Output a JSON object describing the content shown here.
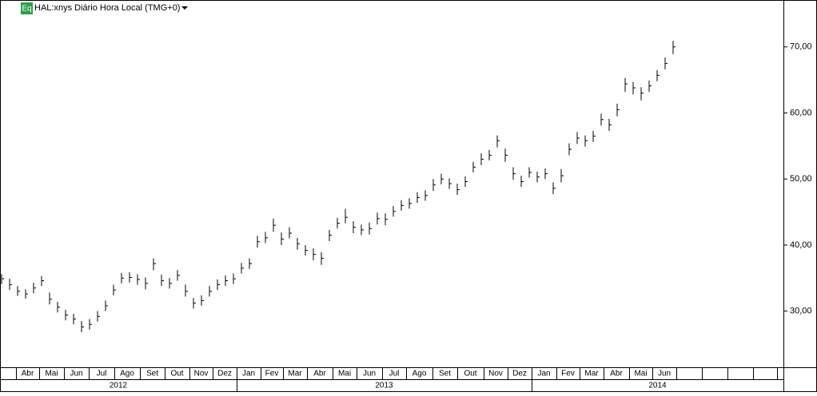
{
  "chart_data": {
    "type": "ohlc",
    "badge": "Eq",
    "title": "HAL:xnys Diário Hora Local (TMG+0)",
    "color": "#000000",
    "ylim": [
      21.5,
      77.1
    ],
    "yticks": [
      {
        "value": 30,
        "label": "30,00"
      },
      {
        "value": 40,
        "label": "40,00"
      },
      {
        "value": 50,
        "label": "50,00"
      },
      {
        "value": 60,
        "label": "60,00"
      },
      {
        "value": 70,
        "label": "70,00"
      }
    ],
    "months": [
      "Abr",
      "Mai",
      "Jun",
      "Jul",
      "Ago",
      "Set",
      "Out",
      "Nov",
      "Dez",
      "Jan",
      "Fev",
      "Mar",
      "Abr",
      "Mai",
      "Jun",
      "Jul",
      "Ago",
      "Set",
      "Out",
      "Nov",
      "Dez",
      "Jan",
      "Fev",
      "Mar",
      "Abr",
      "Mai",
      "Jun"
    ],
    "years": [
      "2012",
      "2013",
      "2014"
    ],
    "series": [
      {
        "name": "high",
        "values": [
          35.6,
          34.9,
          33.8,
          33.3,
          34.3,
          35.3,
          32.8,
          31.4,
          30.2,
          29.6,
          28.5,
          28.8,
          30.0,
          31.6,
          34.0,
          35.8,
          35.9,
          35.6,
          35.1,
          38.0,
          35.5,
          35.0,
          36.2,
          34.0,
          32.0,
          32.4,
          33.8,
          34.8,
          35.4,
          35.7,
          37.3,
          38.0,
          41.4,
          42.0,
          44.0,
          41.9,
          42.7,
          41.1,
          40.0,
          39.5,
          38.9,
          42.3,
          44.1,
          45.5,
          43.6,
          43.1,
          43.4,
          44.9,
          44.8,
          45.9,
          46.8,
          47.1,
          48.0,
          48.3,
          50.0,
          50.8,
          50.1,
          49.3,
          50.4,
          52.6,
          53.9,
          54.4,
          56.6,
          54.6,
          51.8,
          50.5,
          51.8,
          51.1,
          51.6,
          49.5,
          51.5,
          55.4,
          57.1,
          56.6,
          57.3,
          59.9,
          59.1,
          61.4,
          65.3,
          64.7,
          63.9,
          64.9,
          66.5,
          68.4,
          70.9
        ]
      },
      {
        "name": "low",
        "values": [
          34.1,
          33.2,
          32.3,
          31.9,
          32.7,
          33.8,
          31.0,
          29.8,
          28.6,
          28.0,
          26.8,
          27.2,
          28.4,
          30.0,
          32.4,
          34.2,
          34.3,
          34.0,
          33.3,
          36.2,
          33.8,
          33.4,
          34.6,
          32.2,
          30.4,
          30.8,
          32.2,
          33.2,
          33.8,
          34.1,
          35.7,
          36.4,
          39.6,
          40.3,
          42.0,
          40.0,
          41.0,
          39.3,
          38.4,
          37.7,
          37.0,
          40.6,
          42.5,
          43.3,
          41.8,
          41.5,
          41.6,
          43.1,
          43.0,
          44.3,
          45.2,
          45.5,
          46.4,
          46.7,
          48.2,
          49.2,
          48.5,
          47.6,
          48.8,
          51.0,
          52.1,
          52.8,
          54.8,
          52.6,
          49.9,
          48.8,
          50.2,
          49.5,
          50.0,
          47.7,
          49.5,
          53.6,
          55.3,
          54.9,
          55.6,
          58.1,
          57.3,
          59.5,
          63.2,
          62.8,
          61.9,
          63.2,
          64.8,
          66.6,
          68.9
        ]
      },
      {
        "name": "close",
        "values": [
          34.9,
          34.0,
          33.0,
          32.6,
          33.5,
          34.6,
          31.8,
          30.6,
          29.4,
          28.8,
          27.6,
          28.0,
          29.2,
          30.8,
          33.2,
          35.0,
          35.1,
          34.8,
          34.2,
          37.2,
          34.6,
          34.2,
          35.4,
          33.0,
          31.2,
          31.6,
          33.0,
          34.0,
          34.6,
          34.9,
          36.5,
          37.2,
          40.5,
          41.1,
          43.0,
          40.9,
          41.8,
          40.2,
          39.2,
          38.6,
          38.0,
          41.5,
          43.3,
          44.2,
          42.7,
          42.3,
          42.5,
          44.0,
          43.9,
          45.1,
          46.0,
          46.3,
          47.2,
          47.5,
          49.1,
          50.0,
          49.3,
          48.4,
          49.6,
          51.8,
          53.0,
          53.6,
          55.8,
          53.6,
          50.8,
          49.6,
          51.0,
          50.3,
          50.8,
          48.6,
          50.5,
          54.5,
          56.2,
          55.8,
          56.5,
          59.0,
          58.2,
          60.5,
          64.4,
          63.8,
          63.0,
          64.1,
          65.7,
          67.5,
          70.0
        ]
      }
    ]
  }
}
